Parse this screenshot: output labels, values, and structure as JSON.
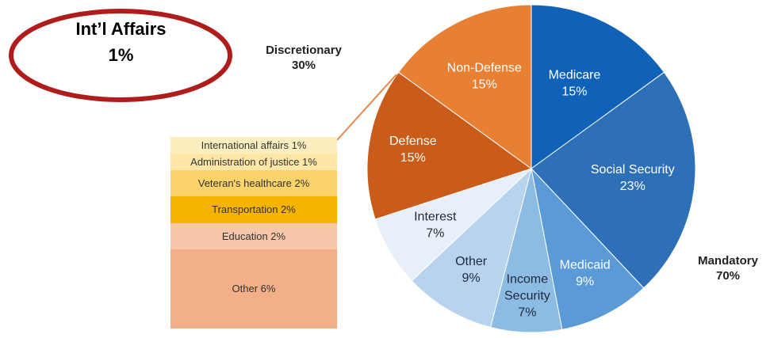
{
  "callout": {
    "title": "Int’l Affairs",
    "value": "1%"
  },
  "groups": {
    "discretionary": {
      "name": "Discretionary",
      "value": "30%"
    },
    "mandatory": {
      "name": "Mandatory",
      "value": "70%"
    }
  },
  "colors": {
    "callout_ring": "#b01c1c",
    "connector": "#e8874a"
  },
  "chart_data": [
    {
      "type": "pie",
      "slices": [
        {
          "name": "Medicare",
          "value": 15,
          "label": "15%",
          "color": "#0f62b8"
        },
        {
          "name": "Social Security",
          "value": 23,
          "label": "23%",
          "color": "#2e70b8"
        },
        {
          "name": "Medicaid",
          "value": 9,
          "label": "9%",
          "color": "#5a9ad6"
        },
        {
          "name": "Income Security",
          "value": 7,
          "label": "7%",
          "color": "#8cbbe4"
        },
        {
          "name": "Other",
          "value": 9,
          "label": "9%",
          "color": "#b7d3ee"
        },
        {
          "name": "Interest",
          "value": 7,
          "label": "7%",
          "color": "#e7eff8"
        },
        {
          "name": "Defense",
          "value": 15,
          "label": "15%",
          "color": "#c95b1b"
        },
        {
          "name": "Non-Defense",
          "value": 15,
          "label": "15%",
          "color": "#e88034"
        }
      ]
    },
    {
      "type": "bar",
      "stacked": true,
      "categories": [
        "International affairs",
        "Administration of justice",
        "Veteran's healthcare",
        "Transportation",
        "Education",
        "Other"
      ],
      "values": [
        1,
        1,
        2,
        2,
        2,
        6
      ],
      "labels": [
        "International affairs 1%",
        "Administration of justice 1%",
        "Veteran's healthcare 2%",
        "Transportation 2%",
        "Education 2%",
        "Other 6%"
      ],
      "colors": [
        "#fdeec0",
        "#fde6a6",
        "#fbd36a",
        "#f6b300",
        "#f7c6a9",
        "#f2af88"
      ]
    }
  ]
}
